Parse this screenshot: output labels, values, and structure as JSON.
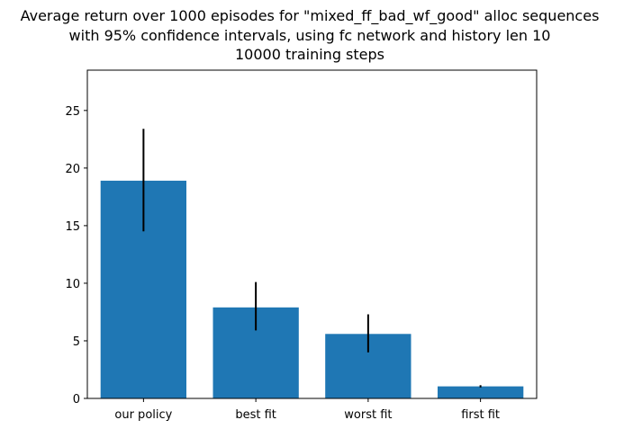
{
  "chart_data": {
    "type": "bar",
    "title_lines": [
      "Average return over 1000 episodes for \"mixed_ff_bad_wf_good\" alloc sequences",
      "with 95% confidence intervals, using fc network and history len 10",
      "10000 training steps"
    ],
    "xlabel": "",
    "ylabel": "",
    "categories": [
      "our policy",
      "best fit",
      "worst fit",
      "first fit"
    ],
    "values": [
      18.9,
      7.9,
      5.6,
      1.05
    ],
    "error_low": [
      14.5,
      5.9,
      4.0,
      0.95
    ],
    "error_high": [
      23.4,
      10.1,
      7.3,
      1.15
    ],
    "ylim": [
      0,
      28.5
    ],
    "yticks": [
      0,
      5,
      10,
      15,
      20,
      25
    ],
    "grid": false,
    "legend": "none",
    "bar_color": "#1f77b4",
    "error_color": "#000000"
  }
}
